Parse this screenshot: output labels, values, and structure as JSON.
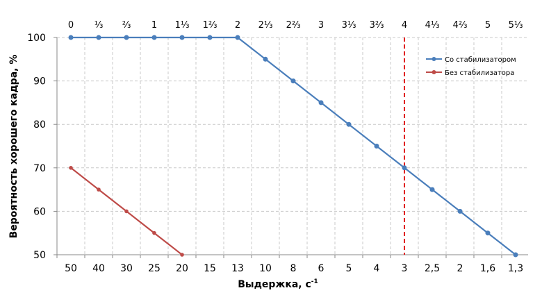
{
  "chart_data": {
    "type": "line",
    "title": "",
    "xlabel": "Выдержка, с",
    "xlabel_sup": "-1",
    "ylabel": "Вероятность хорошего кадра, %",
    "categories": [
      "50",
      "40",
      "30",
      "25",
      "20",
      "15",
      "13",
      "10",
      "8",
      "6",
      "5",
      "4",
      "3",
      "2,5",
      "2",
      "1,6",
      "1,3"
    ],
    "top_categories": [
      "0",
      "⅓",
      "⅔",
      "1",
      "1⅓",
      "1⅔",
      "2",
      "2⅓",
      "2⅔",
      "3",
      "3⅓",
      "3⅔",
      "4",
      "4⅓",
      "4⅔",
      "5",
      "5⅓"
    ],
    "ylim": [
      50,
      100
    ],
    "yticks": [
      50,
      60,
      70,
      80,
      90,
      100
    ],
    "grid": true,
    "legend_position": "top-right",
    "reference_line": {
      "category": "3",
      "color": "#e02020"
    },
    "series": [
      {
        "name": "Со стабилизатором",
        "color": "#4a7ebb",
        "values": [
          100,
          100,
          100,
          100,
          100,
          100,
          100,
          95,
          90,
          85,
          80,
          75,
          70,
          65,
          60,
          55,
          50
        ]
      },
      {
        "name": "Без стабилизатора",
        "color": "#be4b48",
        "values": [
          70,
          65,
          60,
          55,
          50,
          null,
          null,
          null,
          null,
          null,
          null,
          null,
          null,
          null,
          null,
          null,
          null
        ]
      }
    ]
  }
}
